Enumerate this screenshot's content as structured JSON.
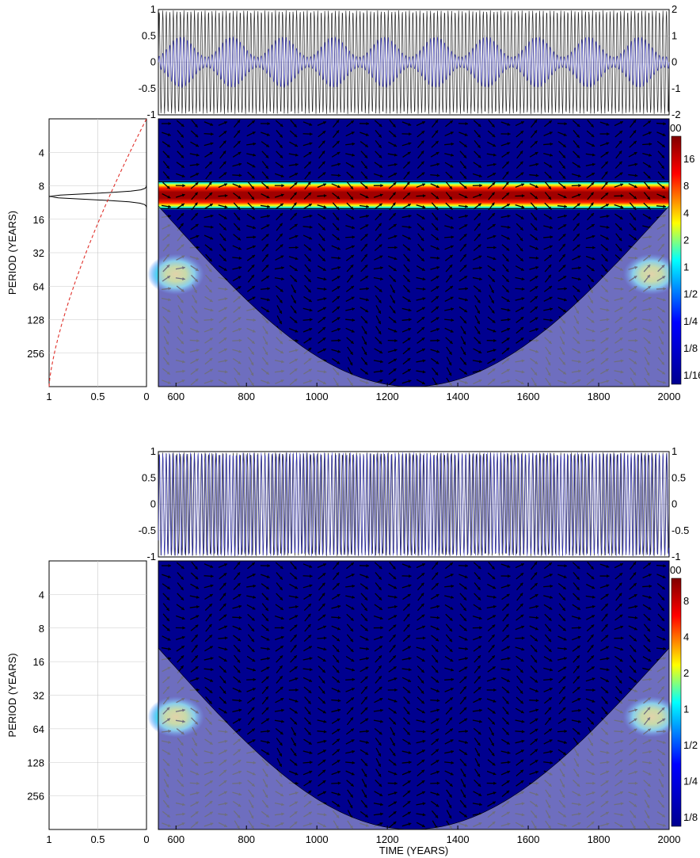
{
  "chart_data": [
    {
      "type": "line",
      "panel": "top-time-series",
      "x_range": [
        550,
        2000
      ],
      "ylim_left": [
        -1,
        1
      ],
      "ylim_right": [
        -2,
        2
      ],
      "left_ticks": [
        "1",
        "0.5",
        "0",
        "-0.5",
        "-1"
      ],
      "right_ticks": [
        "2",
        "1",
        "0",
        "-1",
        "-2"
      ],
      "series": [
        {
          "color": "#000000",
          "amplitude": 1,
          "period_years": 10
        },
        {
          "color": "#3333cc",
          "amplitude": 0.5,
          "period_years": 10,
          "modulated": true
        }
      ],
      "grid": true
    },
    {
      "type": "line",
      "panel": "top-global-coherence",
      "xlim": [
        1,
        0
      ],
      "x_ticks": [
        "1",
        "0.5",
        "0"
      ],
      "ylabel": "PERIOD (YEARS)",
      "y_ticks": [
        "4",
        "8",
        "16",
        "32",
        "64",
        "128",
        "256"
      ],
      "y_log2_range": [
        1,
        9
      ],
      "series": [
        {
          "style": "solid",
          "color": "#000000",
          "peak_period": 10,
          "peak_value": 1,
          "baseline": 0
        },
        {
          "style": "dashed",
          "color": "#e0302a",
          "from": [
            1,
            512
          ],
          "to": [
            0,
            2
          ]
        }
      ],
      "grid": true
    },
    {
      "type": "heatmap",
      "panel": "top-wavelet-coherence",
      "x_range": [
        550,
        2000
      ],
      "x_ticks": [
        "600",
        "800",
        "1000",
        "1200",
        "1400",
        "1600",
        "1800",
        "2000"
      ],
      "y_log2_range": [
        1,
        9
      ],
      "band": {
        "period_low": 8,
        "period_high": 12,
        "value": 16
      },
      "edge_features": [
        {
          "x": 600,
          "period": 50
        },
        {
          "x": 1950,
          "period": 50
        }
      ],
      "cone_of_influence": {
        "min_x": 1270,
        "shaded": true
      },
      "arrows": true,
      "colorbar": {
        "ticks": [
          "16",
          "8",
          "4",
          "2",
          "1",
          "1/2",
          "1/4",
          "1/8",
          "1/16"
        ],
        "top_label": "00",
        "colors": [
          "#00008f",
          "#0000ff",
          "#00ffff",
          "#ffff00",
          "#ff0000",
          "#800000"
        ]
      }
    },
    {
      "type": "line",
      "panel": "bottom-time-series",
      "x_range": [
        550,
        2000
      ],
      "ylim": [
        -1,
        1
      ],
      "left_ticks": [
        "1",
        "0.5",
        "0",
        "-0.5",
        "-1"
      ],
      "right_ticks": [
        "1",
        "0.5",
        "0",
        "-0.5",
        "-1"
      ],
      "series": [
        {
          "color": "#000000",
          "amplitude": 1,
          "period_years": 10
        },
        {
          "color": "#3333cc",
          "amplitude": 1,
          "period_years": 10,
          "phase_shift": true
        }
      ],
      "grid": true
    },
    {
      "type": "line",
      "panel": "bottom-global-coherence",
      "xlim": [
        1,
        0
      ],
      "x_ticks": [
        "1",
        "0.5",
        "0"
      ],
      "ylabel": "PERIOD (YEARS)",
      "y_ticks": [
        "4",
        "8",
        "16",
        "32",
        "64",
        "128",
        "256"
      ],
      "y_log2_range": [
        1,
        9
      ],
      "series": [],
      "grid": true
    },
    {
      "type": "heatmap",
      "panel": "bottom-wavelet-coherence",
      "x_range": [
        550,
        2000
      ],
      "x_ticks": [
        "600",
        "800",
        "1000",
        "1200",
        "1400",
        "1600",
        "1800",
        "2000"
      ],
      "xlabel": "TIME (YEARS)",
      "y_log2_range": [
        1,
        9
      ],
      "edge_features": [
        {
          "x": 600,
          "period": 50
        },
        {
          "x": 1950,
          "period": 50
        }
      ],
      "cone_of_influence": {
        "min_x": 1270,
        "shaded": true
      },
      "arrows": true,
      "colorbar": {
        "ticks": [
          "8",
          "4",
          "2",
          "1",
          "1/2",
          "1/4",
          "1/8"
        ],
        "top_label": "00",
        "colors": [
          "#00008f",
          "#0000ff",
          "#00ffff",
          "#ffff00",
          "#ff0000",
          "#800000"
        ]
      }
    }
  ]
}
